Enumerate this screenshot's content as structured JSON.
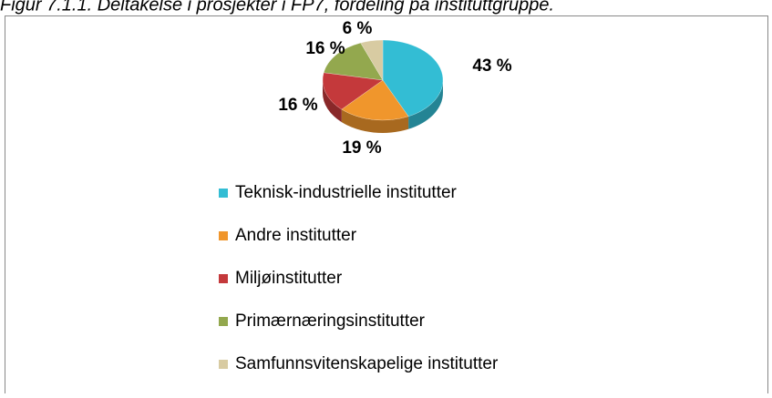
{
  "chart_data": {
    "type": "pie",
    "title": "Figur 7.1.1. Deltakelse i prosjekter i FP7, fordeling på instituttgruppe.",
    "categories": [
      "Teknisk-industrielle institutter",
      "Andre institutter",
      "Miljøinstitutter",
      "Primærnæringsinstitutter",
      "Samfunnsvitenskapelige institutter"
    ],
    "values": [
      43,
      19,
      16,
      16,
      6
    ],
    "value_labels": [
      "43 %",
      "19 %",
      "16 %",
      "16 %",
      "6 %"
    ],
    "colors": [
      "#33bdd4",
      "#f0962c",
      "#c4393b",
      "#93a84e",
      "#d8cba2"
    ]
  }
}
